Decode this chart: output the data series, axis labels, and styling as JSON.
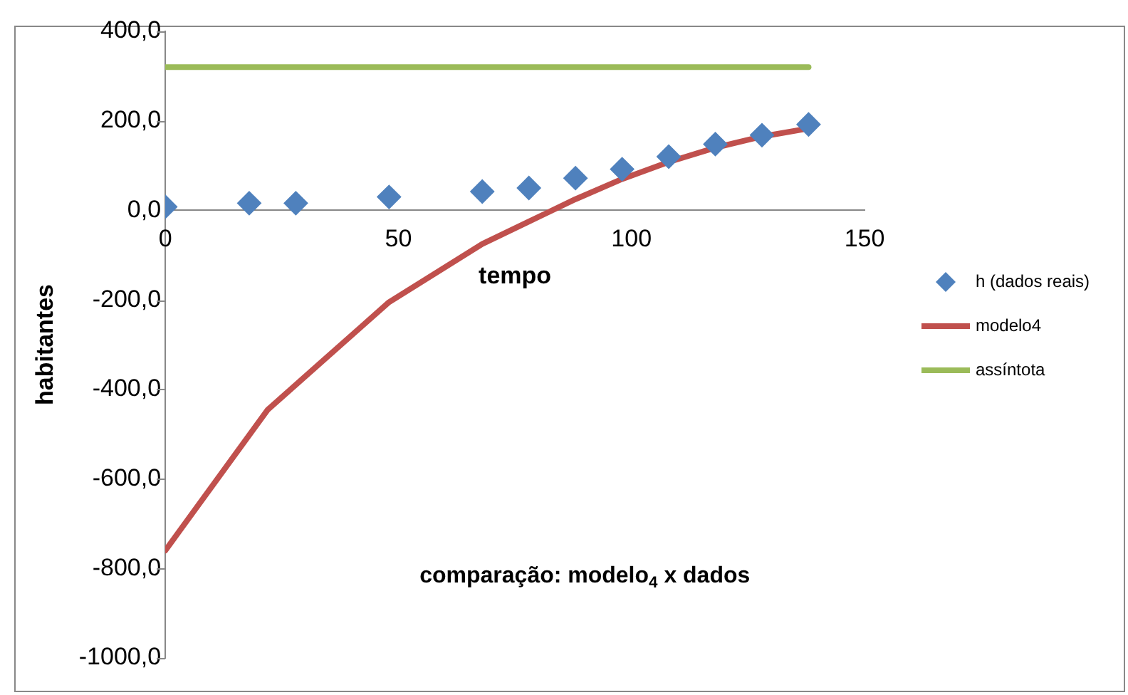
{
  "chart_data": {
    "type": "scatter",
    "title": "comparação: modelo$_{4}$ x dados",
    "xlabel": "tempo",
    "ylabel": "habitantes",
    "xlim": [
      0,
      150
    ],
    "xticks": [
      0,
      50,
      100,
      150
    ],
    "ylim": [
      -1000,
      400
    ],
    "yticks": [
      {
        "value": 400,
        "label": "400,0"
      },
      {
        "value": 200,
        "label": "200,0"
      },
      {
        "value": 0,
        "label": "0,0"
      },
      {
        "value": -200,
        "label": "-200,0"
      },
      {
        "value": -400,
        "label": "-400,0"
      },
      {
        "value": -600,
        "label": "-600,0"
      },
      {
        "value": -800,
        "label": "-800,0"
      },
      {
        "value": -1000,
        "label": "-1000,0"
      }
    ],
    "grid": false,
    "legend": "right",
    "series": [
      {
        "name": "h (dados reais)",
        "type": "scatter",
        "marker": "diamond",
        "color": "#4f81bd",
        "x": [
          0,
          18,
          28,
          48,
          68,
          78,
          88,
          98,
          108,
          118,
          128,
          138
        ],
        "values": [
          8,
          16,
          16,
          30,
          42,
          50,
          72,
          92,
          120,
          148,
          168,
          192
        ]
      },
      {
        "name": "modelo4",
        "type": "line",
        "marker": "none",
        "color": "#c0504d",
        "x": [
          0,
          22,
          48,
          68,
          78,
          88,
          98,
          108,
          118,
          128,
          138
        ],
        "values": [
          -760,
          -445,
          -205,
          -75,
          -25,
          25,
          70,
          108,
          140,
          165,
          183
        ]
      },
      {
        "name": "assíntota",
        "type": "line",
        "marker": "none",
        "color": "#9bbb59",
        "x": [
          0,
          138
        ],
        "values": [
          320,
          320
        ]
      }
    ]
  }
}
